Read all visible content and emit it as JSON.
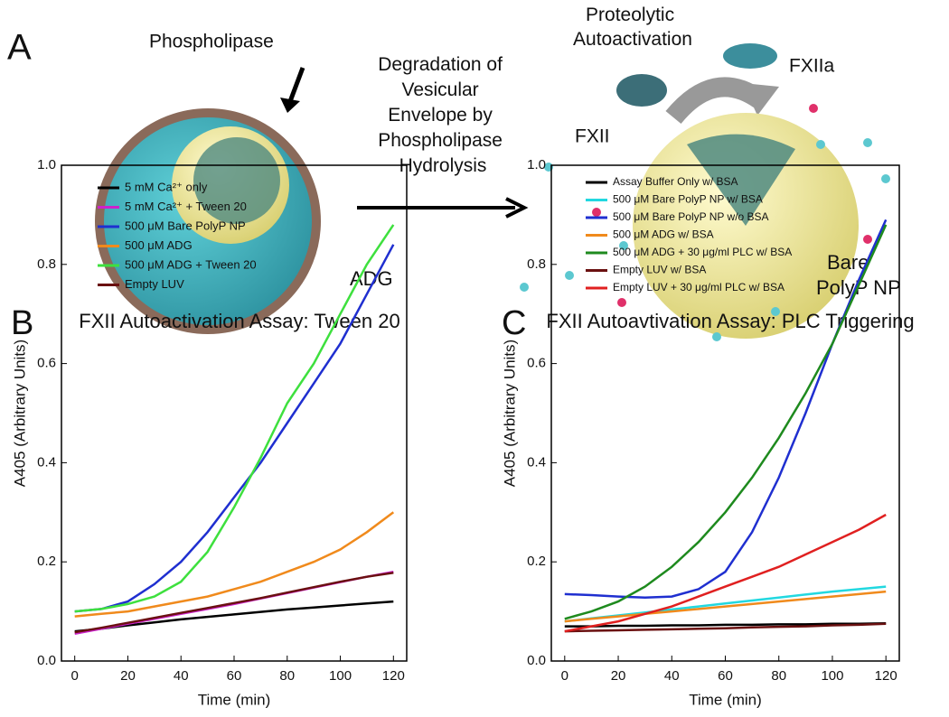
{
  "panel_a": {
    "letter": "A",
    "phospholipase": "Phospholipase",
    "process": [
      "Degradation of",
      "Vesicular",
      "Envelope by",
      "Phospholipase",
      "Hydrolysis"
    ],
    "autoactivation": [
      "Proteolytic",
      "Autoactivation"
    ],
    "fxiia": "FXIIa",
    "fxii": "FXII",
    "adg": "ADG",
    "bare": [
      "Bare",
      "PolyP NP"
    ]
  },
  "chart_data": [
    {
      "type": "line",
      "panel": "B",
      "title": "FXII Autoactivation Assay: Tween 20",
      "xlabel": "Time (min)",
      "ylabel": "A405 (Arbitrary Units)",
      "x": [
        0,
        10,
        20,
        30,
        40,
        50,
        60,
        70,
        80,
        90,
        100,
        110,
        120
      ],
      "xlim": [
        -5,
        125
      ],
      "xticks": [
        0,
        20,
        40,
        60,
        80,
        100,
        120
      ],
      "ylim": [
        0,
        1
      ],
      "yticks": [
        {
          "value": 0,
          "label": "0.0"
        },
        0.2,
        0.4,
        0.6,
        0.8,
        {
          "value": 1,
          "label": "1.0"
        }
      ],
      "series": [
        {
          "name": "5 mM Ca²⁺ only",
          "color": "#000000",
          "values": [
            0.06,
            0.065,
            0.072,
            0.078,
            0.084,
            0.089,
            0.094,
            0.099,
            0.104,
            0.108,
            0.112,
            0.116,
            0.12
          ]
        },
        {
          "name": "5 mM Ca²⁺ + Tween 20",
          "color": "#cc22cc",
          "values": [
            0.055,
            0.065,
            0.075,
            0.085,
            0.095,
            0.105,
            0.115,
            0.126,
            0.137,
            0.148,
            0.159,
            0.17,
            0.18
          ]
        },
        {
          "name": "500 μM Bare PolyP NP",
          "color": "#1f2fd0",
          "values": [
            0.1,
            0.105,
            0.12,
            0.155,
            0.2,
            0.26,
            0.33,
            0.4,
            0.48,
            0.56,
            0.64,
            0.74,
            0.84
          ]
        },
        {
          "name": "500 μM ADG",
          "color": "#f08a1c",
          "values": [
            0.09,
            0.095,
            0.1,
            0.11,
            0.12,
            0.13,
            0.145,
            0.16,
            0.18,
            0.2,
            0.225,
            0.26,
            0.3
          ]
        },
        {
          "name": "500 μM ADG + Tween 20",
          "color": "#3ee03e",
          "values": [
            0.1,
            0.105,
            0.115,
            0.13,
            0.16,
            0.22,
            0.31,
            0.41,
            0.52,
            0.6,
            0.7,
            0.8,
            0.88
          ]
        },
        {
          "name": "Empty LUV",
          "color": "#6a1010",
          "values": [
            0.058,
            0.067,
            0.077,
            0.087,
            0.097,
            0.107,
            0.117,
            0.127,
            0.138,
            0.149,
            0.16,
            0.17,
            0.178
          ]
        }
      ]
    },
    {
      "type": "line",
      "panel": "C",
      "title": "FXII Autoavtivation Assay: PLC Triggering",
      "xlabel": "Time (min)",
      "ylabel": "A405 (Arbitrary Units)",
      "x": [
        0,
        10,
        20,
        30,
        40,
        50,
        60,
        70,
        80,
        90,
        100,
        110,
        120
      ],
      "xlim": [
        -5,
        125
      ],
      "xticks": [
        0,
        20,
        40,
        60,
        80,
        100,
        120
      ],
      "ylim": [
        0,
        1
      ],
      "yticks": [
        {
          "value": 0,
          "label": "0.0"
        },
        0.2,
        0.4,
        0.6,
        0.8,
        {
          "value": 1,
          "label": "1.0"
        }
      ],
      "series": [
        {
          "name": "Assay Buffer Only w/ BSA",
          "color": "#000000",
          "values": [
            0.07,
            0.07,
            0.071,
            0.071,
            0.072,
            0.072,
            0.073,
            0.073,
            0.074,
            0.074,
            0.075,
            0.075,
            0.076
          ]
        },
        {
          "name": "500 μM Bare PolyP NP w/ BSA",
          "color": "#22d8e0",
          "values": [
            0.08,
            0.086,
            0.092,
            0.098,
            0.104,
            0.11,
            0.116,
            0.122,
            0.128,
            0.134,
            0.14,
            0.145,
            0.15
          ]
        },
        {
          "name": "500 μM Bare PolyP NP w/o BSA",
          "color": "#1f2fd0",
          "values": [
            0.135,
            0.133,
            0.13,
            0.128,
            0.13,
            0.145,
            0.18,
            0.26,
            0.37,
            0.5,
            0.64,
            0.77,
            0.89
          ]
        },
        {
          "name": "500 μM ADG w/ BSA",
          "color": "#f08a1c",
          "values": [
            0.08,
            0.085,
            0.09,
            0.095,
            0.1,
            0.105,
            0.11,
            0.115,
            0.12,
            0.125,
            0.13,
            0.135,
            0.14
          ]
        },
        {
          "name": "500 μM ADG + 30 μg/ml PLC w/ BSA",
          "color": "#1e8a1e",
          "values": [
            0.085,
            0.1,
            0.12,
            0.15,
            0.19,
            0.24,
            0.3,
            0.37,
            0.45,
            0.54,
            0.64,
            0.76,
            0.88
          ]
        },
        {
          "name": "Empty LUV w/ BSA",
          "color": "#6a1010",
          "values": [
            0.06,
            0.061,
            0.062,
            0.063,
            0.064,
            0.065,
            0.066,
            0.068,
            0.069,
            0.07,
            0.072,
            0.073,
            0.075
          ]
        },
        {
          "name": "Empty LUV + 30 μg/ml PLC w/ BSA",
          "color": "#e02020",
          "values": [
            0.06,
            0.07,
            0.08,
            0.095,
            0.11,
            0.13,
            0.15,
            0.17,
            0.19,
            0.215,
            0.24,
            0.265,
            0.295
          ]
        }
      ]
    }
  ]
}
